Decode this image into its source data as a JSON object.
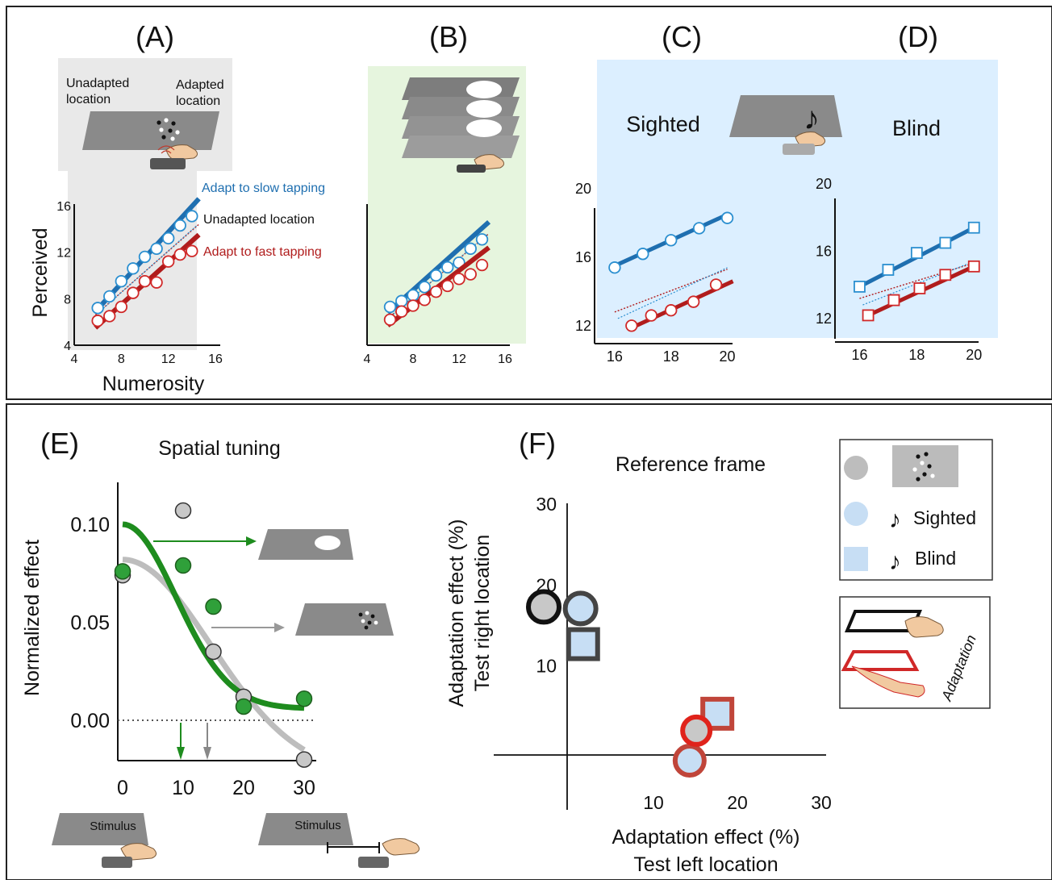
{
  "panel_labels": {
    "a": "(A)",
    "b": "(B)",
    "c": "(C)",
    "d": "(D)",
    "e": "(E)",
    "f": "(F)"
  },
  "panel_a": {
    "unadapted_line1": "Unadapted",
    "unadapted_line2": "location",
    "adapted_line1": "Adapted",
    "adapted_line2": "location",
    "legend_slow": "Adapt to slow tapping",
    "legend_unadapted": "Unadapted location",
    "legend_fast": "Adapt to fast tapping",
    "ylabel": "Perceived",
    "xlabel": "Numerosity"
  },
  "panel_c": {
    "title": "Sighted"
  },
  "panel_d": {
    "title": "Blind"
  },
  "panel_e": {
    "title": "Spatial tuning",
    "ylabel": "Normalized effect",
    "stim_left": "Stimulus",
    "stim_right": "Stimulus"
  },
  "panel_f": {
    "title": "Reference frame",
    "ylabel_line1": "Adaptation effect (%)",
    "ylabel_line2": "Test right location",
    "xlabel_line1": "Adaptation effect (%)",
    "xlabel_line2": "Test left location",
    "legend_sighted": "Sighted",
    "legend_blind": "Blind",
    "adaptation_label": "Adaptation",
    "music_note": "♪"
  },
  "colors": {
    "blue_line": "#1f6fb0",
    "blue_marker": "#2b8fd0",
    "red_line": "#b01c1c",
    "red_marker": "#d02828",
    "green": "#1e8c1e",
    "green_fill": "#2fa03a",
    "grey": "#bdbdbd",
    "panel_gray_bg": "#e9e9e9",
    "panel_green_bg": "#e6f5de",
    "panel_blue_bg": "#dcefff",
    "legend_blue_fill": "#c7def4"
  },
  "chart_data": [
    {
      "id": "A",
      "type": "scatter",
      "xlabel": "Numerosity",
      "ylabel": "Perceived",
      "xlim": [
        4,
        16
      ],
      "ylim": [
        4,
        16
      ],
      "xticks": [
        4,
        8,
        12,
        16
      ],
      "yticks": [
        4,
        8,
        12,
        16
      ],
      "series": [
        {
          "name": "Adapt to slow tapping",
          "x": [
            6,
            7,
            8,
            9,
            10,
            11,
            12,
            13,
            14
          ],
          "y": [
            7.2,
            8.2,
            9.5,
            10.6,
            11.6,
            12.3,
            13.2,
            14.3,
            15.1
          ],
          "fit": [
            [
              5.8,
              6.9
            ],
            [
              14.6,
              16.6
            ]
          ]
        },
        {
          "name": "Unadapted location",
          "fit": [
            [
              5.8,
              6.6
            ],
            [
              14.6,
              14.4
            ]
          ]
        },
        {
          "name": "Adapt to fast tapping",
          "x": [
            6,
            7,
            8,
            9,
            10,
            11,
            12,
            13,
            14
          ],
          "y": [
            6.1,
            6.5,
            7.3,
            8.5,
            9.5,
            9.4,
            11.2,
            11.8,
            12.1
          ],
          "fit": [
            [
              5.8,
              5.5
            ],
            [
              14.6,
              13.5
            ]
          ]
        }
      ]
    },
    {
      "id": "B",
      "type": "scatter",
      "xlim": [
        4,
        16
      ],
      "ylim": [
        4,
        16
      ],
      "xticks": [
        4,
        8,
        12,
        16
      ],
      "series": [
        {
          "x": [
            6,
            7,
            8,
            9,
            10,
            11,
            12,
            13,
            14
          ],
          "y": [
            7.3,
            7.8,
            8.3,
            9.0,
            10.0,
            10.7,
            11.1,
            12.3,
            13.1
          ],
          "fit": [
            [
              5.8,
              6.8
            ],
            [
              14.6,
              14.6
            ]
          ]
        },
        {
          "fit": [
            [
              5.8,
              6.3
            ],
            [
              14.6,
              13.6
            ]
          ]
        },
        {
          "x": [
            6,
            7,
            8,
            9,
            10,
            11,
            12,
            13,
            14
          ],
          "y": [
            6.2,
            6.9,
            7.4,
            7.9,
            8.6,
            9.1,
            9.7,
            10.1,
            10.9
          ],
          "fit": [
            [
              5.8,
              5.7
            ],
            [
              14.6,
              12.4
            ]
          ]
        }
      ]
    },
    {
      "id": "C",
      "type": "scatter",
      "xlim": [
        15,
        20.5
      ],
      "ylim": [
        11,
        21
      ],
      "xticks": [
        16,
        18,
        20
      ],
      "yticks": [
        12,
        16,
        20
      ],
      "series": [
        {
          "x": [
            16,
            17,
            18,
            19,
            20
          ],
          "y": [
            15.4,
            16.2,
            17.0,
            17.7,
            18.3
          ],
          "fit": [
            [
              16,
              15.5
            ],
            [
              20,
              18.5
            ]
          ]
        },
        {
          "fit": [
            [
              16,
              12.8
            ],
            [
              20,
              15.3
            ]
          ]
        },
        {
          "x": [
            16.6,
            17.3,
            18,
            18.8,
            19.6
          ],
          "y": [
            12.0,
            12.6,
            12.9,
            13.4,
            14.4
          ],
          "fit": [
            [
              16.5,
              11.8
            ],
            [
              20.2,
              14.6
            ]
          ]
        }
      ]
    },
    {
      "id": "D",
      "type": "scatter",
      "xlim": [
        15,
        20.5
      ],
      "ylim": [
        11,
        21
      ],
      "xticks": [
        16,
        18,
        20
      ],
      "yticks": [
        12,
        16,
        20
      ],
      "series": [
        {
          "x": [
            16,
            17,
            18,
            19,
            20
          ],
          "y": [
            13.9,
            14.9,
            15.9,
            16.5,
            17.4
          ],
          "fit": [
            [
              16,
              13.9
            ],
            [
              20,
              17.4
            ]
          ]
        },
        {
          "fit": [
            [
              16,
              13.2
            ],
            [
              20,
              15.3
            ]
          ]
        },
        {
          "x": [
            16.3,
            17.2,
            18.1,
            19,
            20
          ],
          "y": [
            12.2,
            13.1,
            13.8,
            14.6,
            15.1
          ],
          "fit": [
            [
              16.3,
              12.2
            ],
            [
              20,
              15.1
            ]
          ]
        }
      ]
    },
    {
      "id": "E",
      "type": "scatter",
      "title": "Spatial tuning",
      "ylabel": "Normalized effect",
      "xlim": [
        -1,
        32
      ],
      "ylim": [
        -0.02,
        0.12
      ],
      "xticks": [
        0,
        10,
        20,
        30
      ],
      "yticks": [
        0.0,
        0.05,
        0.1
      ],
      "ytick_labels": [
        "0.00",
        "0.05",
        "0.10"
      ],
      "series": [
        {
          "points": [
            [
              0,
              0.074
            ],
            [
              10,
              0.107
            ],
            [
              15,
              0.035
            ],
            [
              20,
              0.012
            ],
            [
              30,
              -0.02
            ]
          ]
        },
        {
          "points": [
            [
              0,
              0.076
            ],
            [
              10,
              0.079
            ],
            [
              15,
              0.058
            ],
            [
              20,
              0.007
            ],
            [
              30,
              0.011
            ]
          ]
        }
      ],
      "arrows_x": [
        9.6,
        14.0
      ]
    },
    {
      "id": "F",
      "type": "scatter",
      "title": "Reference frame",
      "xlim": [
        -2,
        32
      ],
      "ylim": [
        -2,
        32
      ],
      "xticks": [
        10,
        20,
        30
      ],
      "yticks": [
        10,
        20,
        30
      ],
      "series": [
        {
          "name": "Sighted",
          "points": [
            [
              1.6,
              17.1
            ],
            [
              15.4,
              2.0
            ],
            [
              14.6,
              -1.7
            ]
          ]
        },
        {
          "name": "Blind",
          "points": [
            [
              1.9,
              12.7
            ],
            [
              17.9,
              4.1
            ]
          ]
        }
      ]
    }
  ]
}
